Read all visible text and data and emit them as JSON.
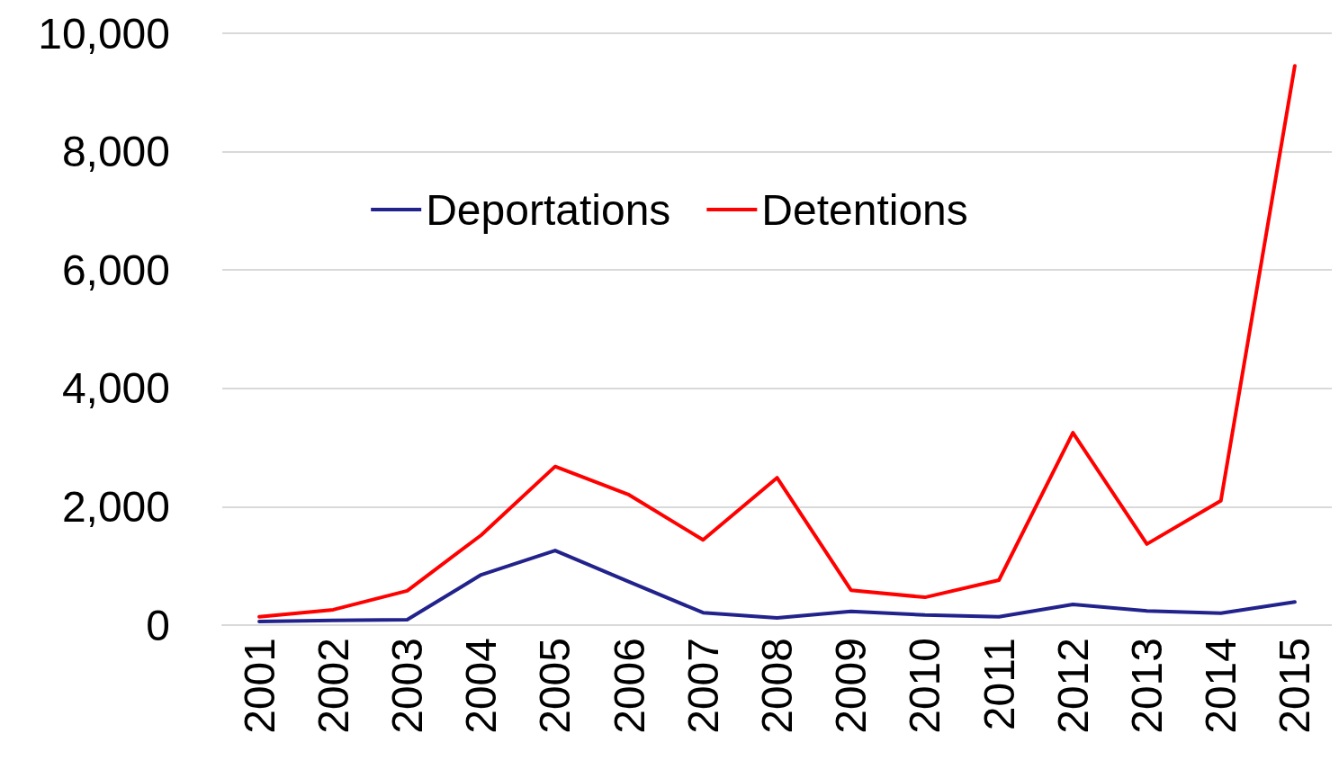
{
  "chart_data": {
    "type": "line",
    "categories": [
      "2001",
      "2002",
      "2003",
      "2004",
      "2005",
      "2006",
      "2007",
      "2008",
      "2009",
      "2010",
      "2011",
      "2012",
      "2013",
      "2014",
      "2015"
    ],
    "series": [
      {
        "name": "Deportations",
        "color": "#22228c",
        "values": [
          60,
          80,
          90,
          850,
          1260,
          730,
          210,
          120,
          230,
          170,
          140,
          350,
          240,
          200,
          390
        ]
      },
      {
        "name": "Detentions",
        "color": "#ff0000",
        "values": [
          140,
          260,
          580,
          1520,
          2680,
          2200,
          1440,
          2490,
          590,
          470,
          760,
          3250,
          1370,
          2100,
          9450
        ]
      }
    ],
    "ylim": [
      0,
      10000
    ],
    "yticks": [
      0,
      {
        "value": 2000,
        "label": "2,000"
      },
      {
        "value": 4000,
        "label": "4,000"
      },
      {
        "value": 6000,
        "label": "6,000"
      },
      {
        "value": 8000,
        "label": "8,000"
      },
      {
        "value": 10000,
        "label": "10,000"
      }
    ],
    "grid": "y",
    "legend": "top",
    "marker": "none",
    "line_style": "solid"
  }
}
